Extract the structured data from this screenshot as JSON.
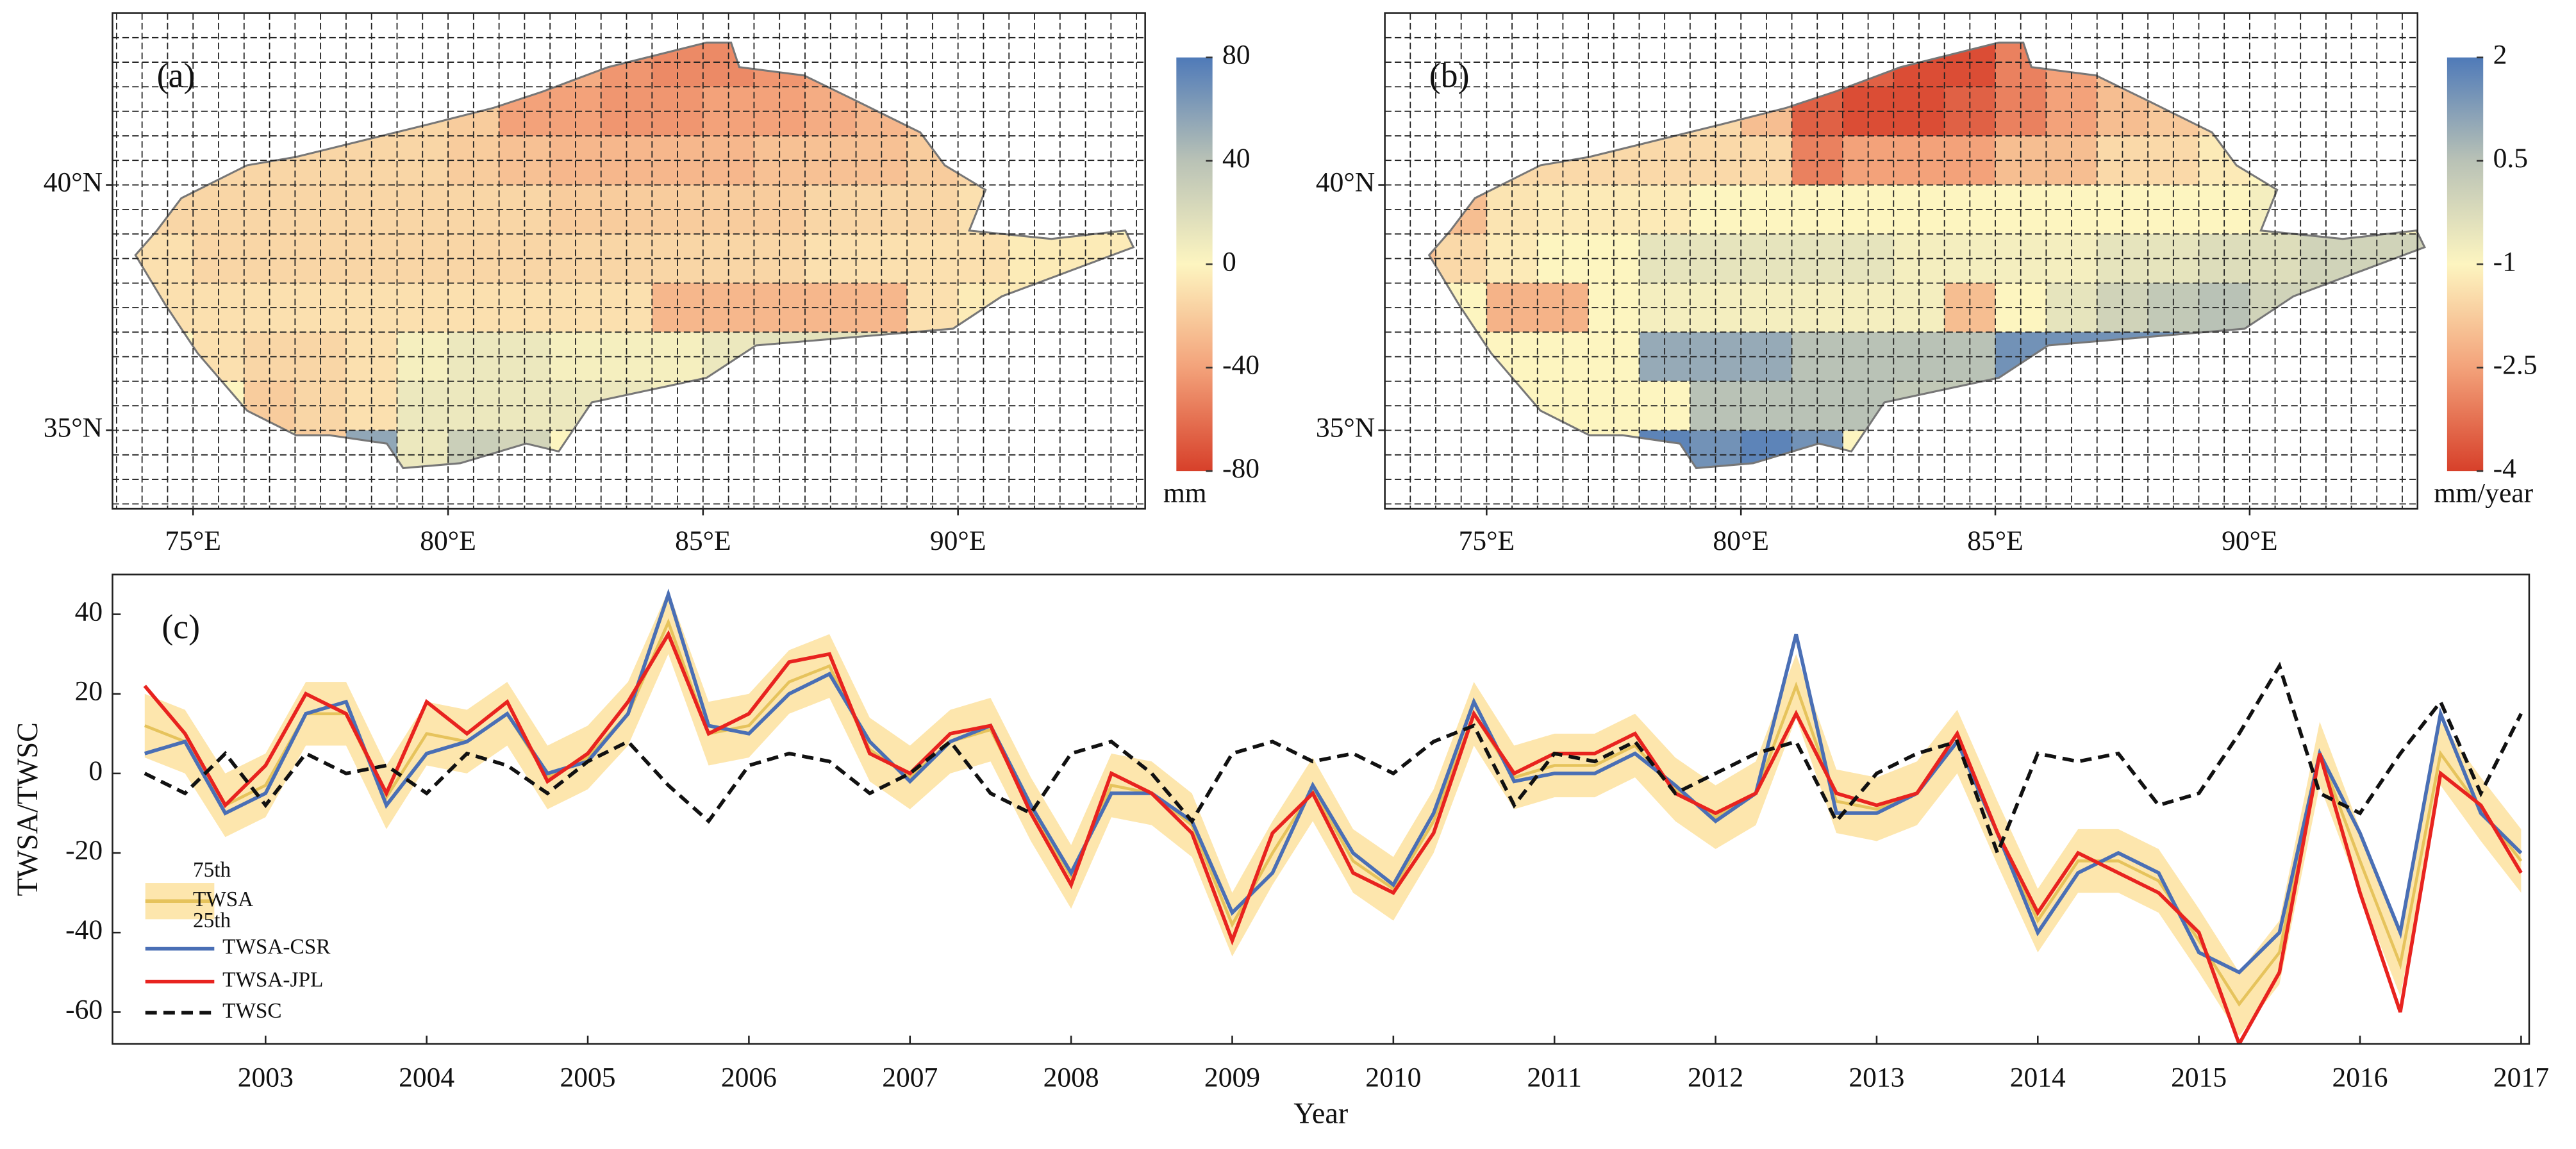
{
  "chart_data": [
    {
      "type": "map",
      "title": "(a)",
      "xlim": [
        73.42,
        93.67
      ],
      "ylim": [
        33.4,
        43.5
      ],
      "xticks": [
        {
          "value": 75,
          "label": "75°E"
        },
        {
          "value": 80,
          "label": "80°E"
        },
        {
          "value": 85,
          "label": "85°E"
        },
        {
          "value": 90,
          "label": "90°E"
        }
      ],
      "yticks": [
        {
          "value": 35,
          "label": "35°N"
        },
        {
          "value": 40,
          "label": "40°N"
        }
      ],
      "lon_edges": [
        73,
        74,
        75,
        76,
        77,
        78,
        79,
        80,
        81,
        82,
        83,
        84,
        85,
        86,
        87,
        88,
        89,
        90,
        91,
        92,
        93,
        94
      ],
      "lat_edges": [
        43,
        42,
        41,
        40,
        39,
        38,
        37,
        36,
        35,
        34
      ],
      "values": [
        [
          null,
          null,
          null,
          null,
          null,
          null,
          null,
          null,
          null,
          -35,
          -45,
          -50,
          -50,
          -45,
          -40,
          null,
          null,
          null,
          null,
          null,
          null
        ],
        [
          null,
          null,
          null,
          null,
          null,
          -15,
          -15,
          -20,
          -40,
          -40,
          -45,
          -45,
          -40,
          -40,
          -35,
          -30,
          -25,
          null,
          null,
          null,
          null
        ],
        [
          null,
          -15,
          -15,
          -15,
          -15,
          -15,
          -15,
          -20,
          -25,
          -30,
          -30,
          -30,
          -30,
          -25,
          -25,
          -25,
          -20,
          -15,
          null,
          null,
          null
        ],
        [
          -10,
          -15,
          -15,
          -15,
          -15,
          -15,
          -15,
          -15,
          -15,
          -20,
          -20,
          -20,
          -20,
          -20,
          -15,
          -15,
          -15,
          -10,
          -10,
          null,
          null
        ],
        [
          -10,
          -10,
          -15,
          -15,
          -15,
          -15,
          -15,
          -15,
          -15,
          -15,
          -15,
          -15,
          -15,
          -15,
          -10,
          -10,
          -10,
          -10,
          -5,
          -5,
          -5
        ],
        [
          null,
          -10,
          -10,
          -10,
          -10,
          -10,
          -10,
          -10,
          -10,
          -10,
          -10,
          -30,
          -30,
          -30,
          -30,
          -30,
          -10,
          -5,
          -5,
          -5,
          -5
        ],
        [
          null,
          null,
          -10,
          -15,
          -15,
          -10,
          5,
          10,
          10,
          5,
          5,
          5,
          10,
          15,
          15,
          15,
          5,
          null,
          null,
          null,
          null
        ],
        [
          null,
          null,
          null,
          -20,
          -15,
          -10,
          10,
          10,
          10,
          10,
          10,
          5,
          10,
          20,
          20,
          20,
          null,
          null,
          null,
          null,
          null
        ],
        [
          null,
          null,
          null,
          null,
          -20,
          55,
          10,
          30,
          25,
          null,
          null,
          null,
          null,
          null,
          null,
          null,
          null,
          null,
          null,
          null,
          null
        ]
      ],
      "colorbar": {
        "label": "mm",
        "clim": [
          -80,
          80
        ],
        "ticks": [
          -80,
          -40,
          0,
          40,
          80
        ],
        "colors": [
          "#d7402a",
          "#f3a27a",
          "#fdf5c0",
          "#b9c2b6",
          "#4f7ab8"
        ]
      }
    },
    {
      "type": "map",
      "title": "(b)",
      "xlim": [
        73.0,
        93.3
      ],
      "ylim": [
        33.4,
        43.5
      ],
      "xticks": [
        {
          "value": 75,
          "label": "75°E"
        },
        {
          "value": 80,
          "label": "80°E"
        },
        {
          "value": 85,
          "label": "85°E"
        },
        {
          "value": 90,
          "label": "90°E"
        }
      ],
      "yticks": [
        {
          "value": 35,
          "label": "35°N"
        },
        {
          "value": 40,
          "label": "40°N"
        }
      ],
      "lon_edges": [
        73,
        74,
        75,
        76,
        77,
        78,
        79,
        80,
        81,
        82,
        83,
        84,
        85,
        86,
        87,
        88,
        89,
        90,
        91,
        92,
        93,
        94
      ],
      "lat_edges": [
        43,
        42,
        41,
        40,
        39,
        38,
        37,
        36,
        35,
        34
      ],
      "values": [
        [
          null,
          null,
          null,
          null,
          null,
          null,
          null,
          null,
          null,
          -3.5,
          -3.8,
          -3.8,
          -3,
          -2.5,
          -2,
          null,
          null,
          null,
          null,
          null,
          null
        ],
        [
          null,
          null,
          null,
          null,
          null,
          -1.5,
          -1.5,
          -2,
          -3.5,
          -3.8,
          -3.8,
          -3.5,
          -3,
          -2.5,
          -2,
          -1.8,
          -1.5,
          null,
          null,
          null,
          null
        ],
        [
          null,
          -2,
          -1.5,
          -1.5,
          -1.5,
          -1.5,
          -1.5,
          -1.5,
          -3,
          -2.5,
          -2.5,
          -2.5,
          -2,
          -2,
          -1.5,
          -1.5,
          -1.2,
          -1,
          null,
          null,
          null
        ],
        [
          -2.2,
          -2,
          -1.3,
          -1.2,
          -1.2,
          -1.2,
          -1,
          -1,
          -1,
          -1,
          -1,
          -1,
          -1,
          -1,
          -1,
          -1,
          -1,
          -0.8,
          -0.8,
          null,
          null
        ],
        [
          -2,
          -1.5,
          -1.2,
          -1,
          -1,
          -0.5,
          -0.5,
          -0.5,
          -0.5,
          -0.5,
          -0.8,
          -0.8,
          -0.8,
          -0.8,
          -0.5,
          -0.5,
          -0.3,
          -0.3,
          0,
          0,
          0
        ],
        [
          null,
          -1,
          -2.2,
          -2.2,
          -1,
          -0.8,
          -0.8,
          -0.8,
          -0.8,
          -0.8,
          -0.8,
          -2,
          -1,
          -0.5,
          0,
          0.3,
          0.5,
          0,
          0,
          -0.5,
          -0.5
        ],
        [
          null,
          null,
          -1,
          -1,
          -1,
          1,
          1,
          1,
          0.5,
          0.5,
          0.5,
          0.5,
          1.5,
          1.5,
          1.5,
          1.5,
          1,
          null,
          null,
          null,
          null
        ],
        [
          null,
          null,
          null,
          -1,
          -1,
          -1,
          0.5,
          0.5,
          0.5,
          0.5,
          0.3,
          0.3,
          1,
          1.5,
          1.5,
          1.5,
          null,
          null,
          null,
          null,
          null
        ],
        [
          null,
          null,
          null,
          null,
          -1,
          1.8,
          1.5,
          1.8,
          1.5,
          null,
          null,
          null,
          null,
          null,
          null,
          null,
          null,
          null,
          null,
          null,
          null
        ]
      ],
      "colorbar": {
        "label": "mm/year",
        "clim": [
          -4,
          2
        ],
        "ticks": [
          -4,
          -2.5,
          -1,
          0.5,
          2
        ],
        "colors": [
          "#d7402a",
          "#f3a27a",
          "#fdf5c0",
          "#b9c2b6",
          "#4f7ab8"
        ]
      }
    },
    {
      "type": "line",
      "title": "(c)",
      "xlabel": "Year",
      "ylabel": "TWSA/TWSC",
      "x": [
        2002.25,
        2002.5,
        2002.75,
        2003,
        2003.25,
        2003.5,
        2003.75,
        2004,
        2004.25,
        2004.5,
        2004.75,
        2005,
        2005.25,
        2005.5,
        2005.75,
        2006,
        2006.25,
        2006.5,
        2006.75,
        2007,
        2007.25,
        2007.5,
        2007.75,
        2008,
        2008.25,
        2008.5,
        2008.75,
        2009,
        2009.25,
        2009.5,
        2009.75,
        2010,
        2010.25,
        2010.5,
        2010.75,
        2011,
        2011.25,
        2011.5,
        2011.75,
        2012,
        2012.25,
        2012.5,
        2012.75,
        2013,
        2013.25,
        2013.5,
        2013.75,
        2014,
        2014.25,
        2014.5,
        2014.75,
        2015,
        2015.25,
        2015.5,
        2015.75,
        2016,
        2016.25,
        2016.5,
        2016.75,
        2017
      ],
      "xlim": [
        2002.05,
        2017.05
      ],
      "xticks": [
        2003,
        2004,
        2005,
        2006,
        2007,
        2008,
        2009,
        2010,
        2011,
        2012,
        2013,
        2014,
        2015,
        2016,
        2017
      ],
      "ylim": [
        -68,
        50
      ],
      "yticks": [
        -60,
        -40,
        -20,
        0,
        20,
        40
      ],
      "band": {
        "upper_name": "75th",
        "lower_name": "25th",
        "color": "#fde6ad",
        "upper": [
          20,
          16,
          0,
          5,
          23,
          23,
          2,
          18,
          16,
          23,
          7,
          12,
          23,
          46,
          18,
          20,
          31,
          35,
          14,
          7,
          16,
          19,
          -1,
          -18,
          5,
          3,
          -5,
          -30,
          -12,
          4,
          -14,
          -21,
          -4,
          23,
          7,
          10,
          10,
          15,
          4,
          -3,
          3,
          30,
          1,
          -1,
          3,
          16,
          -7,
          -29,
          -14,
          -14,
          -19,
          -34,
          -50,
          -37,
          13,
          -14,
          -40,
          13,
          -1,
          -14
        ],
        "lower": [
          4,
          0,
          -16,
          -11,
          7,
          7,
          -14,
          2,
          0,
          7,
          -9,
          -4,
          7,
          30,
          2,
          4,
          15,
          19,
          -2,
          -9,
          0,
          3,
          -17,
          -34,
          -11,
          -13,
          -21,
          -46,
          -28,
          -12,
          -30,
          -37,
          -20,
          7,
          -9,
          -6,
          -6,
          -1,
          -12,
          -19,
          -13,
          14,
          -15,
          -17,
          -13,
          0,
          -23,
          -45,
          -30,
          -30,
          -35,
          -50,
          -66,
          -53,
          -3,
          -30,
          -56,
          -3,
          -17,
          -30
        ]
      },
      "series": [
        {
          "name": "TWSA",
          "color": "#e6c35c",
          "style": "solid",
          "values": [
            12,
            8,
            -8,
            -3,
            15,
            15,
            -6,
            10,
            8,
            15,
            -1,
            4,
            15,
            38,
            10,
            12,
            23,
            27,
            6,
            -1,
            8,
            11,
            -9,
            -26,
            -3,
            -5,
            -13,
            -38,
            -20,
            -4,
            -22,
            -29,
            -12,
            15,
            -1,
            2,
            2,
            7,
            -4,
            -11,
            -5,
            22,
            -7,
            -9,
            -5,
            8,
            -15,
            -37,
            -22,
            -22,
            -27,
            -42,
            -58,
            -45,
            5,
            -22,
            -48,
            5,
            -9,
            -22
          ]
        },
        {
          "name": "TWSA-CSR",
          "color": "#4a6fb5",
          "style": "solid",
          "values": [
            5,
            8,
            -10,
            -5,
            15,
            18,
            -8,
            5,
            8,
            15,
            0,
            3,
            15,
            45,
            12,
            10,
            20,
            25,
            8,
            -2,
            8,
            12,
            -8,
            -25,
            -5,
            -5,
            -12,
            -35,
            -25,
            -3,
            -20,
            -28,
            -10,
            18,
            -2,
            0,
            0,
            5,
            -3,
            -12,
            -5,
            35,
            -10,
            -10,
            -5,
            8,
            -15,
            -40,
            -25,
            -20,
            -25,
            -45,
            -50,
            -40,
            5,
            -15,
            -40,
            15,
            -10,
            -20
          ]
        },
        {
          "name": "TWSA-JPL",
          "color": "#e8231f",
          "style": "solid",
          "values": [
            22,
            10,
            -8,
            2,
            20,
            15,
            -5,
            18,
            10,
            18,
            -2,
            5,
            18,
            35,
            10,
            15,
            28,
            30,
            5,
            0,
            10,
            12,
            -10,
            -28,
            0,
            -5,
            -15,
            -42,
            -15,
            -5,
            -25,
            -30,
            -15,
            15,
            0,
            5,
            5,
            10,
            -5,
            -10,
            -5,
            15,
            -5,
            -8,
            -5,
            10,
            -15,
            -35,
            -20,
            -25,
            -30,
            -40,
            -68,
            -50,
            5,
            -30,
            -60,
            0,
            -8,
            -25
          ]
        },
        {
          "name": "TWSC",
          "color": "#111111",
          "style": "dashed",
          "values": [
            0,
            -5,
            5,
            -8,
            5,
            0,
            2,
            -5,
            5,
            2,
            -5,
            3,
            8,
            -3,
            -12,
            2,
            5,
            3,
            -5,
            0,
            8,
            -5,
            -10,
            5,
            8,
            0,
            -12,
            5,
            8,
            3,
            5,
            0,
            8,
            12,
            -8,
            5,
            3,
            8,
            -5,
            0,
            5,
            8,
            -12,
            0,
            5,
            8,
            -20,
            5,
            3,
            5,
            -8,
            -5,
            10,
            27,
            -5,
            -10,
            5,
            18,
            -5,
            15
          ]
        }
      ]
    }
  ]
}
